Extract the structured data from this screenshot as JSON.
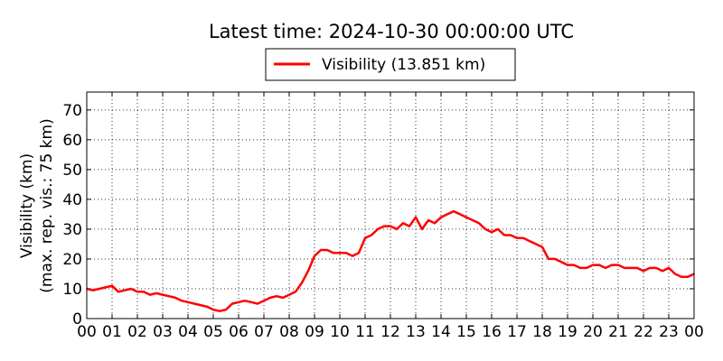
{
  "chart_data": {
    "type": "line",
    "title": "Latest time: 2024-10-30 00:00:00 UTC",
    "ylabel_lines": [
      "Visibility (km)",
      "(max. rep. vis.: 75 km)"
    ],
    "xlabel": "",
    "legend": {
      "label": "Visibility (13.851 km)",
      "placement": "top-center"
    },
    "grid": true,
    "xlim": [
      0,
      24
    ],
    "ylim": [
      0,
      76
    ],
    "x_ticks": [
      "00",
      "01",
      "02",
      "03",
      "04",
      "05",
      "06",
      "07",
      "08",
      "09",
      "10",
      "11",
      "12",
      "13",
      "14",
      "15",
      "16",
      "17",
      "18",
      "19",
      "20",
      "21",
      "22",
      "23",
      "00"
    ],
    "y_ticks": [
      0,
      10,
      20,
      30,
      40,
      50,
      60,
      70
    ],
    "series": [
      {
        "name": "Visibility (13.851 km)",
        "color": "#ff0000",
        "x": [
          0,
          0.25,
          0.5,
          0.75,
          1,
          1.25,
          1.5,
          1.75,
          2,
          2.25,
          2.5,
          2.75,
          3,
          3.25,
          3.5,
          3.75,
          4,
          4.25,
          4.5,
          4.75,
          5,
          5.25,
          5.5,
          5.75,
          6,
          6.25,
          6.5,
          6.75,
          7,
          7.25,
          7.5,
          7.75,
          8,
          8.25,
          8.5,
          8.75,
          9,
          9.25,
          9.5,
          9.75,
          10,
          10.25,
          10.5,
          10.75,
          11,
          11.25,
          11.5,
          11.75,
          12,
          12.25,
          12.5,
          12.75,
          13,
          13.25,
          13.5,
          13.75,
          14,
          14.25,
          14.5,
          14.75,
          15,
          15.25,
          15.5,
          15.75,
          16,
          16.25,
          16.5,
          16.75,
          17,
          17.25,
          17.5,
          17.75,
          18,
          18.25,
          18.5,
          18.75,
          19,
          19.25,
          19.5,
          19.75,
          20,
          20.25,
          20.5,
          20.75,
          21,
          21.25,
          21.5,
          21.75,
          22,
          22.25,
          22.5,
          22.75,
          23,
          23.25,
          23.5,
          23.75,
          24
        ],
        "values": [
          10,
          9.5,
          10,
          10.5,
          11,
          9,
          9.5,
          10,
          9,
          9,
          8,
          8.5,
          8,
          7.5,
          7,
          6,
          5.5,
          5,
          4.5,
          4,
          3,
          2.5,
          3,
          5,
          5.5,
          6,
          5.5,
          5,
          6,
          7,
          7.5,
          7,
          8,
          9,
          12,
          16,
          21,
          23,
          23,
          22,
          22,
          22,
          21,
          22,
          27,
          28,
          30,
          31,
          31,
          30,
          32,
          31,
          34,
          30,
          33,
          32,
          34,
          35,
          36,
          35,
          34,
          33,
          32,
          30,
          29,
          30,
          28,
          28,
          27,
          27,
          26,
          25,
          24,
          20,
          20,
          19,
          18,
          18,
          17,
          17,
          18,
          18,
          17,
          18,
          18,
          17,
          17,
          17,
          16,
          17,
          17,
          16,
          17,
          15,
          14,
          14,
          15
        ]
      }
    ]
  }
}
